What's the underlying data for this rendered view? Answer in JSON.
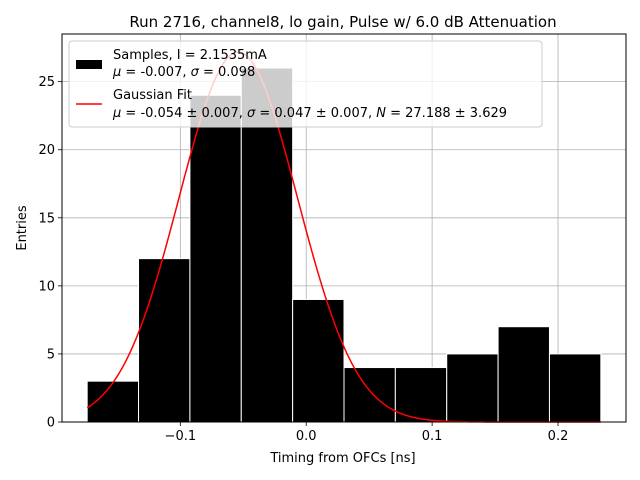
{
  "chart_data": {
    "type": "histogram",
    "title": "Run 2716, channel8, lo gain, Pulse w/ 6.0 dB Attenuation",
    "xlabel": "Timing from OFCs [ns]",
    "ylabel": "Entries",
    "xlim": [
      -0.194,
      0.254
    ],
    "ylim": [
      0,
      28.5
    ],
    "xticks": [
      -0.1,
      0.0,
      0.1,
      0.2
    ],
    "xtick_labels": [
      "−0.1",
      "0.0",
      "0.1",
      "0.2"
    ],
    "yticks": [
      0,
      5,
      10,
      15,
      20,
      25
    ],
    "ytick_labels": [
      "0",
      "5",
      "10",
      "15",
      "20",
      "25"
    ],
    "grid": true,
    "legend_position": "top-left",
    "bin_edges": [
      -0.174,
      -0.1332,
      -0.0924,
      -0.0516,
      -0.0108,
      0.03,
      0.0708,
      0.1116,
      0.1524,
      0.1932,
      0.234
    ],
    "counts": [
      3,
      12,
      24,
      26,
      9,
      4,
      4,
      5,
      7,
      5
    ],
    "bar_color": "#000000",
    "bar_edge_color": "#ffffff",
    "fit": {
      "type": "gaussian",
      "mu": -0.054,
      "sigma": 0.047,
      "N": 27.188,
      "x_range": [
        -0.174,
        0.234
      ],
      "color": "#ff0000"
    },
    "legend": {
      "samples": {
        "line1": "Samples, I = 2.1535mA",
        "mu_sym": "μ",
        "mu_val": " = -0.007, ",
        "sigma_sym": "σ",
        "sigma_val": " = 0.098"
      },
      "fit": {
        "line1": "Gaussian Fit",
        "mu_sym": "μ",
        "mu_val": " = -0.054 ± 0.007, ",
        "sigma_sym": "σ",
        "sigma_val": " = 0.047 ± 0.007, ",
        "n_sym": "N",
        "n_val": " = 27.188 ± 3.629"
      }
    }
  }
}
